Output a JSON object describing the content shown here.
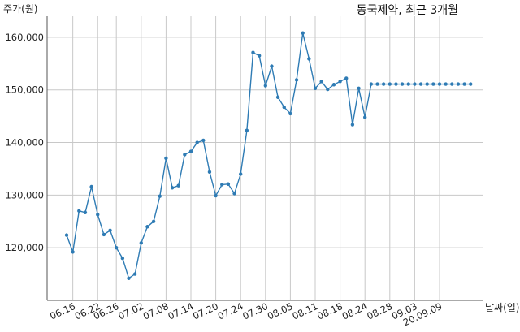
{
  "chart_data": {
    "type": "line",
    "title": "동국제약, 최근 3개월",
    "xlabel": "날짜(일)",
    "ylabel": "주가(원)",
    "ylim": [
      110000,
      164000
    ],
    "y_ticks": [
      120000,
      130000,
      140000,
      150000,
      160000
    ],
    "y_tick_labels": [
      "120,000",
      "130,000",
      "140,000",
      "150,000",
      "160,000"
    ],
    "x_ticks": [
      {
        "index": 1,
        "label": "06.16"
      },
      {
        "index": 5,
        "label": "06.22"
      },
      {
        "index": 8,
        "label": "06.26"
      },
      {
        "index": 12,
        "label": "07.02"
      },
      {
        "index": 16,
        "label": "07.08"
      },
      {
        "index": 20,
        "label": "07.14"
      },
      {
        "index": 24,
        "label": "07.20"
      },
      {
        "index": 28,
        "label": "07.24"
      },
      {
        "index": 32,
        "label": "07.30"
      },
      {
        "index": 36,
        "label": "08.05"
      },
      {
        "index": 40,
        "label": "08.11"
      },
      {
        "index": 44,
        "label": "08.18"
      },
      {
        "index": 48,
        "label": "08.24"
      },
      {
        "index": 52,
        "label": "08.28"
      },
      {
        "index": 56,
        "label": "09.03"
      },
      {
        "index": 60,
        "label": "20.09.09"
      }
    ],
    "grid": true,
    "color": "#2e7bb4",
    "series": [
      {
        "values": [
          122400,
          119200,
          127000,
          126700,
          131600,
          126300,
          122500,
          123300,
          120000,
          118000,
          114200,
          115000,
          120900,
          124000,
          125000,
          129800,
          137000,
          131400,
          131800,
          137700,
          138300,
          140000,
          140400,
          134400,
          129900,
          132000,
          132100,
          130300,
          134000,
          142300,
          157100,
          156500,
          150800,
          154500,
          148600,
          146700,
          145500,
          151900,
          160800,
          155900,
          150300,
          151600,
          150100,
          151000,
          151600,
          152200,
          143400,
          150300,
          144800,
          151100,
          151100,
          151100,
          151100,
          151100,
          151100,
          151100,
          151100,
          151100,
          151100,
          151100,
          151100,
          151100,
          151100,
          151100,
          151100,
          151100
        ]
      }
    ]
  }
}
